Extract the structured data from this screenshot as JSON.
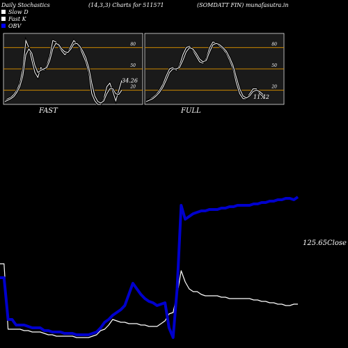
{
  "header": {
    "title": "Daily Stochastics",
    "params": "(14,3,3) Charts for 511571",
    "symbol": "(SOMDATT FIN) munafasutra.in"
  },
  "legend": [
    {
      "label": "Slow  D",
      "color": "#ffffff"
    },
    {
      "label": "Fast K",
      "color": "#ffffff"
    },
    {
      "label": "OBV",
      "color": "#0000ff"
    }
  ],
  "colors": {
    "panel_bg": "#1a1a1a",
    "level_line": "#cc8800",
    "line": "#ffffff",
    "obv": "#0000cc"
  },
  "chart_data": [
    {
      "type": "line",
      "name": "FAST",
      "label_value": "34.26",
      "ylim": [
        0,
        100
      ],
      "ticks": [
        80,
        50,
        20
      ],
      "series": [
        {
          "name": "Fast K",
          "values": [
            5,
            8,
            10,
            14,
            20,
            30,
            50,
            90,
            80,
            62,
            45,
            38,
            52,
            48,
            55,
            68,
            90,
            88,
            82,
            75,
            70,
            74,
            82,
            90,
            85,
            80,
            70,
            60,
            45,
            15,
            5,
            0,
            0,
            8,
            25,
            30,
            18,
            5,
            20,
            34
          ]
        },
        {
          "name": "Slow D",
          "values": [
            4,
            6,
            8,
            11,
            17,
            25,
            40,
            70,
            78,
            72,
            55,
            45,
            48,
            50,
            52,
            62,
            78,
            86,
            84,
            78,
            74,
            73,
            78,
            85,
            86,
            82,
            75,
            66,
            52,
            30,
            12,
            4,
            2,
            5,
            15,
            22,
            22,
            15,
            14,
            20
          ]
        }
      ]
    },
    {
      "type": "line",
      "name": "FULL",
      "label_value": "11.42",
      "ylim": [
        0,
        100
      ],
      "ticks": [
        80,
        50,
        20
      ],
      "series": [
        {
          "name": "Fast K",
          "values": [
            5,
            7,
            10,
            14,
            20,
            28,
            40,
            50,
            52,
            48,
            55,
            70,
            80,
            82,
            76,
            68,
            60,
            58,
            65,
            80,
            88,
            86,
            82,
            78,
            72,
            62,
            50,
            30,
            15,
            8,
            8,
            15,
            22,
            22,
            15,
            11
          ]
        },
        {
          "name": "Slow D",
          "values": [
            4,
            6,
            8,
            12,
            17,
            24,
            34,
            45,
            50,
            50,
            52,
            62,
            74,
            80,
            78,
            72,
            64,
            60,
            62,
            74,
            84,
            86,
            84,
            80,
            75,
            66,
            55,
            38,
            22,
            12,
            9,
            12,
            18,
            20,
            18,
            14
          ]
        }
      ]
    },
    {
      "type": "line",
      "name": "Price / OBV",
      "last_close_label": "125.65Close",
      "series": [
        {
          "name": "Close",
          "values": [
            58,
            58,
            11,
            11,
            11,
            11,
            10,
            10,
            9,
            9,
            9,
            8,
            7,
            7,
            6,
            6,
            6,
            6,
            6,
            5,
            5,
            5,
            5,
            6,
            7,
            10,
            11,
            14,
            18,
            17,
            16,
            16,
            15,
            15,
            15,
            14,
            14,
            13,
            13,
            13,
            15,
            17,
            22,
            23,
            36,
            53,
            45,
            40,
            38,
            38,
            36,
            35,
            35,
            35,
            35,
            34,
            34,
            33,
            33,
            33,
            33,
            33,
            33,
            32,
            32,
            31,
            31,
            30,
            30,
            29,
            29,
            28,
            28,
            29,
            29
          ]
        },
        {
          "name": "OBV",
          "values": [
            48,
            48,
            18,
            18,
            14,
            14,
            14,
            13,
            12,
            12,
            12,
            10,
            10,
            9,
            9,
            9,
            8,
            8,
            8,
            7,
            7,
            7,
            7,
            8,
            9,
            12,
            16,
            18,
            21,
            23,
            25,
            28,
            36,
            44,
            40,
            36,
            33,
            31,
            30,
            28,
            29,
            30,
            12,
            5,
            40,
            100,
            90,
            92,
            94,
            95,
            96,
            96,
            97,
            97,
            97,
            98,
            98,
            99,
            99,
            100,
            100,
            100,
            100,
            101,
            101,
            102,
            102,
            103,
            103,
            104,
            104,
            105,
            105,
            104,
            106
          ]
        }
      ]
    }
  ]
}
